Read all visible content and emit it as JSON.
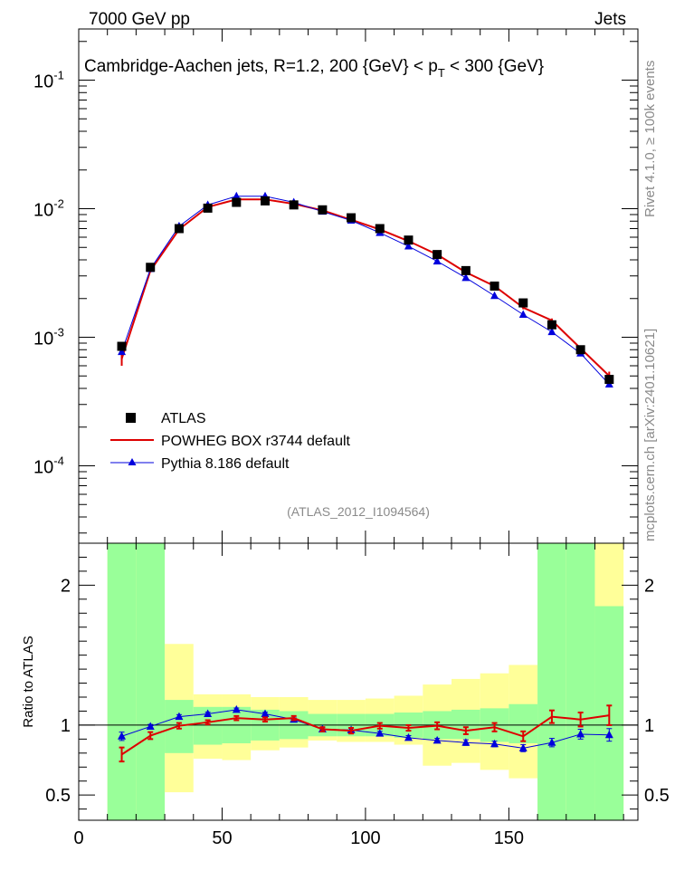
{
  "header": {
    "left": "7000 GeV pp",
    "right": "Jets"
  },
  "side_text": {
    "rivet": "Rivet 4.1.0, ≥ 100k events",
    "mcplots": "mcplots.cern.ch [arXiv:2401.10621]"
  },
  "chart_data": {
    "type": "line",
    "title": "Cambridge-Aachen jets, R=1.2,  200 {GeV}    < p_T < 300 {GeV}",
    "title_parts": {
      "pre": "Cambridge-Aachen jets, R=1.2,  200 {GeV}    < p",
      "sub": "T",
      "post": " < 300 {GeV}"
    },
    "watermark": "(ATLAS_2012_I1094564)",
    "xlim": [
      0,
      195
    ],
    "x_ticks": [
      "0",
      "50",
      "100",
      "150"
    ],
    "main_panel": {
      "yscale": "log",
      "ylim": [
        2.5e-05,
        0.25
      ],
      "y_ticks": [
        {
          "base": "10",
          "exp": "-1",
          "value": 0.1
        },
        {
          "base": "10",
          "exp": "-2",
          "value": 0.01
        },
        {
          "base": "10",
          "exp": "-3",
          "value": 0.001
        },
        {
          "base": "10",
          "exp": "-4",
          "value": 0.0001
        }
      ]
    },
    "ratio_panel": {
      "ylabel": "Ratio to ATLAS",
      "ylim": [
        0.32,
        2.3
      ],
      "y_ticks": [
        "0.5",
        "1",
        "2"
      ],
      "reference_line": 1.0
    },
    "x": [
      15,
      25,
      35,
      45,
      55,
      65,
      75,
      85,
      95,
      105,
      115,
      125,
      135,
      145,
      155,
      165,
      175,
      185
    ],
    "bin_edges": [
      10,
      20,
      30,
      40,
      50,
      60,
      70,
      80,
      90,
      100,
      110,
      120,
      130,
      140,
      150,
      160,
      170,
      180,
      190
    ],
    "series": [
      {
        "name": "ATLAS",
        "style": "data",
        "color": "#000000",
        "values": [
          0.00085,
          0.0035,
          0.007,
          0.0101,
          0.0112,
          0.0115,
          0.0107,
          0.0098,
          0.0085,
          0.007,
          0.0057,
          0.0044,
          0.0033,
          0.0025,
          0.00185,
          0.00125,
          0.0008,
          0.00047
        ]
      },
      {
        "name": "POWHEG BOX r3744 default",
        "style": "line",
        "color": "#dd0000",
        "values": [
          0.00068,
          0.0033,
          0.0069,
          0.0103,
          0.0118,
          0.0118,
          0.0109,
          0.0097,
          0.0082,
          0.0069,
          0.0056,
          0.0044,
          0.0032,
          0.0025,
          0.0017,
          0.00135,
          0.00082,
          0.0005
        ],
        "errors": [
          8e-05,
          0.0001,
          0.0001,
          0.0001,
          0.0001,
          0.0001,
          0.0001,
          0.0001,
          0.0001,
          0.0001,
          0.0001,
          0.0001,
          8e-05,
          6e-05,
          5e-05,
          5e-05,
          4e-05,
          4e-05
        ],
        "ratio": [
          0.79,
          0.925,
          0.995,
          1.02,
          1.05,
          1.04,
          1.05,
          0.97,
          0.96,
          0.995,
          0.98,
          0.995,
          0.96,
          0.985,
          0.92,
          1.06,
          1.04,
          1.07
        ],
        "ratio_err": [
          0.05,
          0.025,
          0.02,
          0.015,
          0.015,
          0.015,
          0.015,
          0.015,
          0.02,
          0.02,
          0.02,
          0.025,
          0.025,
          0.03,
          0.035,
          0.045,
          0.05,
          0.07
        ]
      },
      {
        "name": "Pythia 8.186 default",
        "style": "marker-line",
        "color": "#0000dd",
        "values": [
          0.00077,
          0.0034,
          0.0073,
          0.0107,
          0.0125,
          0.0125,
          0.0112,
          0.0095,
          0.0081,
          0.0065,
          0.0051,
          0.0039,
          0.0029,
          0.0021,
          0.0015,
          0.0011,
          0.00075,
          0.00043
        ],
        "ratio": [
          0.92,
          0.99,
          1.06,
          1.08,
          1.11,
          1.08,
          1.04,
          0.97,
          0.965,
          0.94,
          0.91,
          0.89,
          0.875,
          0.865,
          0.835,
          0.875,
          0.935,
          0.93
        ],
        "ratio_err": [
          0.03,
          0.015,
          0.015,
          0.012,
          0.012,
          0.012,
          0.012,
          0.012,
          0.012,
          0.015,
          0.015,
          0.015,
          0.02,
          0.02,
          0.025,
          0.03,
          0.035,
          0.045
        ]
      }
    ],
    "bands": {
      "inner_color": "#99ff99",
      "outer_color": "#ffff99",
      "inner_lo": [
        0.32,
        0.32,
        0.8,
        0.86,
        0.87,
        0.89,
        0.9,
        0.92,
        0.92,
        0.92,
        0.91,
        0.9,
        0.9,
        0.88,
        0.87,
        0.32,
        0.32,
        0.32
      ],
      "inner_hi": [
        2.3,
        2.3,
        1.18,
        1.13,
        1.13,
        1.11,
        1.1,
        1.08,
        1.08,
        1.08,
        1.09,
        1.1,
        1.11,
        1.12,
        1.15,
        2.3,
        2.3,
        1.85
      ],
      "outer_lo": [
        0.32,
        0.32,
        0.52,
        0.76,
        0.75,
        0.82,
        0.84,
        0.89,
        0.88,
        0.88,
        0.86,
        0.71,
        0.73,
        0.68,
        0.62,
        0.32,
        0.32,
        0.32
      ],
      "outer_hi": [
        2.3,
        2.3,
        1.58,
        1.22,
        1.22,
        1.2,
        1.2,
        1.18,
        1.18,
        1.19,
        1.21,
        1.29,
        1.33,
        1.37,
        1.43,
        2.3,
        2.3,
        2.3
      ]
    },
    "legend_position": "lower-left"
  }
}
